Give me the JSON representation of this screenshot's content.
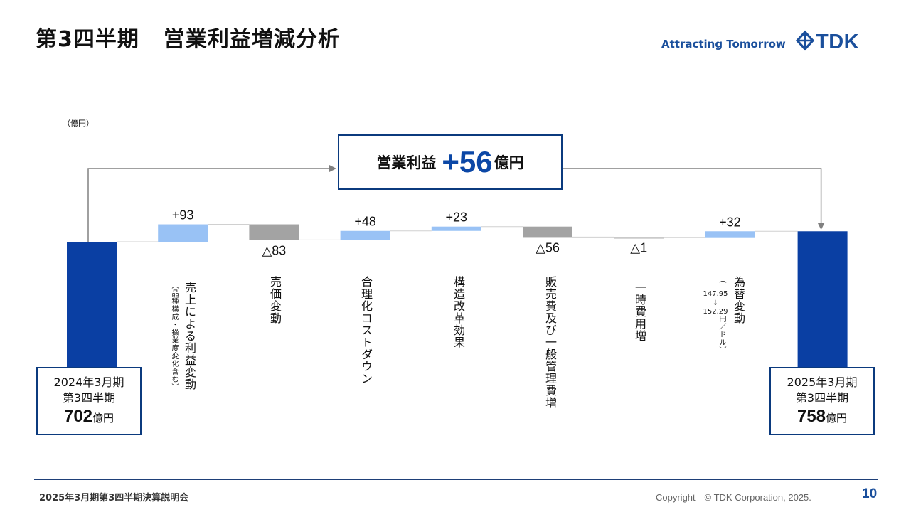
{
  "header": {
    "title_left": "第3四半期",
    "title_right": "営業利益増減分析",
    "tagline": "Attracting Tomorrow",
    "logo_text": "TDK"
  },
  "unit_label": "（億円）",
  "banner": {
    "label": "営業利益",
    "value": "+56",
    "unit": "億円"
  },
  "totals": {
    "start": {
      "line1": "2024年3月期",
      "line2": "第3四半期",
      "value": "702",
      "unit": "億円"
    },
    "end": {
      "line1": "2025年3月期",
      "line2": "第3四半期",
      "value": "758",
      "unit": "億円"
    }
  },
  "steps": [
    {
      "value_label": "+93",
      "label": "売上による利益変動",
      "sublabel": "（品種構成・操業度変化含む）"
    },
    {
      "value_label": "△83",
      "label": "売価変動"
    },
    {
      "value_label": "+48",
      "label": "合理化コストダウン"
    },
    {
      "value_label": "+23",
      "label": "構造改革効果"
    },
    {
      "value_label": "△56",
      "label": "販売費及び一般管理費増"
    },
    {
      "value_label": "△1",
      "label": "一時費用増"
    },
    {
      "value_label": "+32",
      "label": "為替変動",
      "sublabel": "（　　　　円／ドル）",
      "fx_from": "147.95",
      "fx_arrow": "↓",
      "fx_to": "152.29"
    }
  ],
  "chart_data": {
    "type": "bar",
    "subtype": "waterfall",
    "categories": [
      "2024年3月期 第3四半期",
      "売上による利益変動",
      "売価変動",
      "合理化コストダウン",
      "構造改革効果",
      "販売費及び一般管理費増",
      "一時費用増",
      "為替変動",
      "2025年3月期 第3四半期"
    ],
    "values": [
      702,
      93,
      -83,
      48,
      23,
      -56,
      -1,
      32,
      758
    ],
    "measure": [
      "total",
      "relative",
      "relative",
      "relative",
      "relative",
      "relative",
      "relative",
      "relative",
      "total"
    ],
    "ylabel": "（億円）",
    "colors": {
      "total": "#0a3fa3",
      "increase": "#99c2f5",
      "decrease": "#a3a3a3",
      "connector": "#d0d0d0",
      "arrow": "#808080"
    }
  },
  "footer": {
    "left": "2025年3月期第3四半期決算説明会",
    "copyright": "Copyright　© TDK Corporation, 2025.",
    "page": "10"
  }
}
